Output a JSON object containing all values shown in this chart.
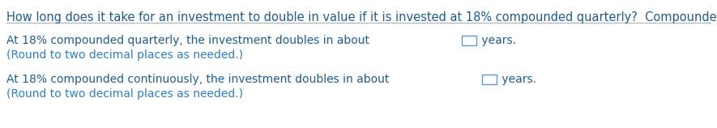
{
  "question": "How long does it take for an investment to double in value if it is invested at 18% compounded quarterly?  Compounded continuously?",
  "line1_part1": "At 18% compounded quarterly, the investment doubles in about ",
  "line1_part2": " years.",
  "line2": "(Round to two decimal places as needed.)",
  "line3_part1": "At 18% compounded continuously, the investment doubles in about ",
  "line3_part2": " years.",
  "line4": "(Round to two decimal places as needed.)",
  "question_color": "#1f5c8b",
  "body_color": "#1f5c8b",
  "hint_color": "#2e7fc1",
  "bg_color": "#ffffff",
  "separator_color": "#b0b0b0",
  "font_size_question": 10.5,
  "font_size_body": 10.0,
  "font_size_hint": 10.0,
  "box_color": "#5b9bd5",
  "fig_width": 8.85,
  "fig_height": 1.58
}
